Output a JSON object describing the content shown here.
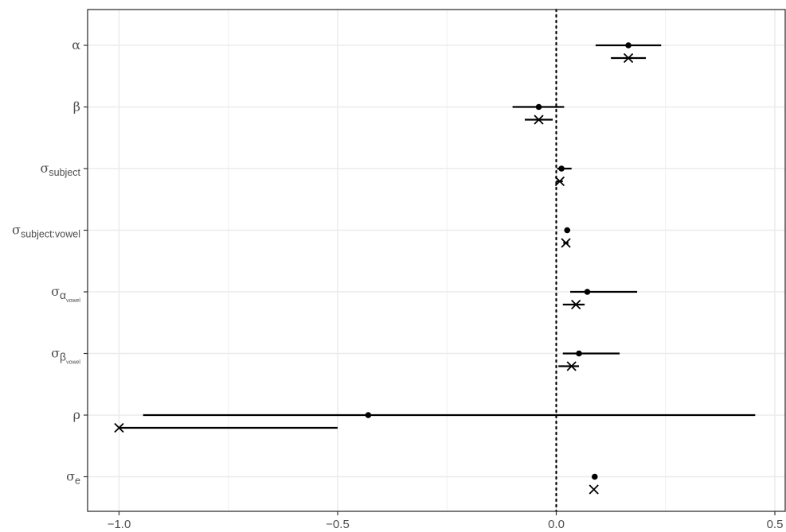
{
  "chart_data": {
    "type": "scatter",
    "xlim": [
      -1.0,
      0.5
    ],
    "x_ticks": [
      -1.0,
      -0.5,
      0.0,
      0.5
    ],
    "x_tick_labels": [
      "−1.0",
      "−0.5",
      "0.0",
      "0.5"
    ],
    "reference_line_x": 0,
    "grid": true,
    "marker_types": [
      "dot",
      "cross"
    ],
    "parameters": [
      {
        "label": "α",
        "sub": "",
        "subsub": "",
        "dot": {
          "x": 0.165,
          "lo": 0.09,
          "hi": 0.24
        },
        "cross": {
          "x": 0.165,
          "lo": 0.125,
          "hi": 0.205
        }
      },
      {
        "label": "β",
        "sub": "",
        "subsub": "",
        "dot": {
          "x": -0.04,
          "lo": -0.1,
          "hi": 0.018
        },
        "cross": {
          "x": -0.04,
          "lo": -0.072,
          "hi": -0.008
        }
      },
      {
        "label": "σ",
        "sub": "subject",
        "subsub": "",
        "dot": {
          "x": 0.012,
          "lo": 0.002,
          "hi": 0.035
        },
        "cross": {
          "x": 0.008,
          "lo": 0.0,
          "hi": 0.015
        }
      },
      {
        "label": "σ",
        "sub": "subject:vowel",
        "subsub": "",
        "dot": {
          "x": 0.025,
          "lo": 0.02,
          "hi": 0.032
        },
        "cross": {
          "x": 0.022,
          "lo": 0.016,
          "hi": 0.028
        }
      },
      {
        "label": "σ",
        "sub": "α",
        "subsub": "vowel",
        "dot": {
          "x": 0.071,
          "lo": 0.032,
          "hi": 0.185
        },
        "cross": {
          "x": 0.045,
          "lo": 0.015,
          "hi": 0.065
        }
      },
      {
        "label": "σ",
        "sub": "β",
        "subsub": "vowel",
        "dot": {
          "x": 0.052,
          "lo": 0.015,
          "hi": 0.145
        },
        "cross": {
          "x": 0.035,
          "lo": 0.005,
          "hi": 0.052
        }
      },
      {
        "label": "ρ",
        "sub": "",
        "subsub": "",
        "dot": {
          "x": -0.43,
          "lo": -0.945,
          "hi": 0.455
        },
        "cross": {
          "x": -1.0,
          "lo": -1.0,
          "hi": -0.5
        }
      },
      {
        "label": "σ",
        "sub": "e",
        "subsub": "",
        "dot": {
          "x": 0.088,
          "lo": 0.088,
          "hi": 0.088
        },
        "cross": {
          "x": 0.086,
          "lo": 0.086,
          "hi": 0.086
        }
      }
    ]
  },
  "colors": {
    "grid": "#ebebeb",
    "ink": "#000000",
    "tick_text": "#4d4d4d",
    "panel_border": "#333333"
  }
}
